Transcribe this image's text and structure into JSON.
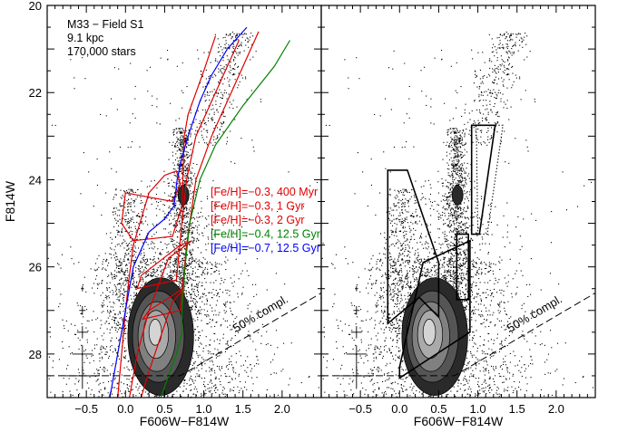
{
  "chart_data": [
    {
      "type": "scatter",
      "panel": "left",
      "xlabel": "F606W−F814W",
      "ylabel": "F814W",
      "xlim": [
        -1.0,
        2.5
      ],
      "ylim": [
        29.0,
        20.0
      ],
      "y_inverted": true,
      "xticks": [
        -0.5,
        0.0,
        0.5,
        1.0,
        1.5,
        2.0
      ],
      "xtick_labels": [
        "−0.5",
        "0.0",
        "0.5",
        "1.0",
        "1.5",
        "2.0"
      ],
      "yticks": [
        20,
        22,
        24,
        26,
        28
      ],
      "ytick_labels": [
        "20",
        "22",
        "24",
        "26",
        "28"
      ],
      "info_lines": [
        "M33 − Field S1",
        "9.1 kpc",
        "170,000 stars"
      ],
      "completeness": {
        "label": "50% compl.",
        "points": [
          [
            -1.0,
            28.5
          ],
          [
            0.7,
            28.5
          ],
          [
            2.5,
            26.6
          ]
        ],
        "label_at": [
          1.75,
          27.15
        ]
      },
      "error_bars": [
        {
          "x": -0.55,
          "y": 26.5,
          "ex": 0.02,
          "ey": 0.06
        },
        {
          "x": -0.55,
          "y": 27.0,
          "ex": 0.04,
          "ey": 0.1
        },
        {
          "x": -0.55,
          "y": 27.5,
          "ex": 0.07,
          "ey": 0.14
        },
        {
          "x": -0.55,
          "y": 28.0,
          "ex": 0.13,
          "ey": 0.2
        },
        {
          "x": -0.55,
          "y": 28.5,
          "ex": 0.22,
          "ey": 0.3
        }
      ],
      "density_contours": [
        {
          "level": 1,
          "cx": 0.45,
          "cy": 27.6,
          "rx": 0.42,
          "ry": 1.35
        },
        {
          "level": 2,
          "cx": 0.42,
          "cy": 27.6,
          "rx": 0.33,
          "ry": 1.05
        },
        {
          "level": 3,
          "cx": 0.4,
          "cy": 27.6,
          "rx": 0.24,
          "ry": 0.8
        },
        {
          "level": 4,
          "cx": 0.39,
          "cy": 27.55,
          "rx": 0.16,
          "ry": 0.55
        },
        {
          "level": 5,
          "cx": 0.38,
          "cy": 27.5,
          "rx": 0.08,
          "ry": 0.3
        },
        {
          "level": 1,
          "cx": 0.74,
          "cy": 24.35,
          "rx": 0.07,
          "ry": 0.22
        }
      ],
      "series": [
        {
          "name": "[Fe/H]=−0.3, 400 Myr",
          "color": "#e00000",
          "x": [
            -0.1,
            -0.05,
            0.0,
            0.05,
            0.1,
            0.3,
            0.5,
            0.65,
            0.7,
            0.6,
            0.3,
            0.0,
            -0.05,
            0.1,
            0.6,
            0.72,
            0.73,
            0.74,
            0.75,
            0.8,
            1.0,
            1.15
          ],
          "y": [
            29.0,
            28.0,
            27.0,
            26.2,
            25.5,
            24.3,
            23.9,
            23.8,
            24.1,
            24.5,
            24.4,
            24.3,
            25.0,
            25.4,
            25.3,
            24.6,
            24.2,
            23.5,
            23.0,
            22.5,
            21.5,
            20.7
          ]
        },
        {
          "name": "[Fe/H]=−0.3, 1 Gyr",
          "color": "#e00000",
          "x": [
            0.05,
            0.15,
            0.3,
            0.55,
            0.7,
            0.85,
            0.7,
            0.2,
            0.15,
            0.65,
            0.72,
            0.78,
            0.9,
            1.2,
            1.45
          ],
          "y": [
            29.0,
            28.0,
            27.0,
            25.8,
            25.6,
            25.4,
            25.5,
            26.2,
            26.5,
            26.3,
            25.0,
            24.0,
            23.0,
            21.8,
            20.8
          ]
        },
        {
          "name": "[Fe/H]=−0.3, 2 Gyr",
          "color": "#e00000",
          "x": [
            0.2,
            0.3,
            0.45,
            0.6,
            0.7,
            0.72,
            0.65,
            0.3,
            0.22,
            0.7,
            0.78,
            0.9,
            1.1,
            1.35,
            1.7
          ],
          "y": [
            29.0,
            28.4,
            27.6,
            26.8,
            26.6,
            26.5,
            26.6,
            27.0,
            27.2,
            27.0,
            25.5,
            24.0,
            23.0,
            22.0,
            20.6
          ]
        },
        {
          "name": "[Fe/H]=−0.4, 12.5 Gyr",
          "color": "#008000",
          "x": [
            0.45,
            0.55,
            0.65,
            0.72,
            0.72,
            0.76,
            0.82,
            0.95,
            1.15,
            1.5,
            1.9,
            2.1
          ],
          "y": [
            29.0,
            28.5,
            28.0,
            27.5,
            27.0,
            26.0,
            25.0,
            24.0,
            23.2,
            22.3,
            21.4,
            20.8
          ]
        },
        {
          "name": "[Fe/H]=−0.7, 12.5 Gyr",
          "color": "#0000ff",
          "x": [
            -0.2,
            -0.05,
            0.1,
            0.3,
            0.5,
            0.62,
            0.66,
            0.72,
            0.8,
            0.95,
            1.1,
            1.3,
            1.55
          ],
          "y": [
            29.0,
            27.5,
            26.0,
            25.2,
            24.9,
            24.6,
            24.0,
            23.5,
            23.0,
            22.2,
            21.6,
            21.0,
            20.5
          ]
        }
      ]
    },
    {
      "type": "scatter",
      "panel": "right",
      "xlabel": "F606W−F814W",
      "xlim": [
        -1.0,
        2.5
      ],
      "ylim": [
        29.0,
        20.0
      ],
      "y_inverted": true,
      "xticks": [
        -0.5,
        0.0,
        0.5,
        1.0,
        1.5,
        2.0
      ],
      "xtick_labels": [
        "−0.5",
        "0.0",
        "0.5",
        "1.0",
        "1.5",
        "2.0"
      ],
      "completeness": {
        "label": "50% compl.",
        "points": [
          [
            -1.0,
            28.5
          ],
          [
            0.7,
            28.5
          ],
          [
            2.5,
            26.6
          ]
        ],
        "label_at": [
          1.75,
          27.15
        ]
      },
      "error_bars": [
        {
          "x": -0.55,
          "y": 26.5,
          "ex": 0.02,
          "ey": 0.06
        },
        {
          "x": -0.55,
          "y": 27.0,
          "ex": 0.04,
          "ey": 0.1
        },
        {
          "x": -0.55,
          "y": 27.5,
          "ex": 0.07,
          "ey": 0.14
        },
        {
          "x": -0.55,
          "y": 28.0,
          "ex": 0.13,
          "ey": 0.2
        },
        {
          "x": -0.55,
          "y": 28.5,
          "ex": 0.22,
          "ey": 0.3
        }
      ],
      "density_contours": [
        {
          "level": 1,
          "cx": 0.45,
          "cy": 27.6,
          "rx": 0.42,
          "ry": 1.35
        },
        {
          "level": 2,
          "cx": 0.42,
          "cy": 27.6,
          "rx": 0.33,
          "ry": 1.05
        },
        {
          "level": 3,
          "cx": 0.4,
          "cy": 27.6,
          "rx": 0.24,
          "ry": 0.8
        },
        {
          "level": 4,
          "cx": 0.39,
          "cy": 27.55,
          "rx": 0.16,
          "ry": 0.55
        },
        {
          "level": 5,
          "cx": 0.38,
          "cy": 27.5,
          "rx": 0.08,
          "ry": 0.3
        },
        {
          "level": 1,
          "cx": 0.74,
          "cy": 24.35,
          "rx": 0.07,
          "ry": 0.22
        }
      ],
      "selection_boxes": [
        {
          "style": "solid",
          "points": [
            [
              -0.15,
              23.78
            ],
            [
              0.1,
              23.78
            ],
            [
              0.5,
              25.9
            ],
            [
              0.5,
              27.15
            ],
            [
              0.25,
              26.7
            ],
            [
              -0.15,
              27.3
            ]
          ]
        },
        {
          "style": "solid",
          "points": [
            [
              0.3,
              25.9
            ],
            [
              0.9,
              25.4
            ],
            [
              0.9,
              27.5
            ],
            [
              0.0,
              28.55
            ],
            [
              0.0,
              28.3
            ]
          ]
        },
        {
          "style": "solid",
          "points": [
            [
              0.73,
              25.25
            ],
            [
              0.88,
              25.25
            ],
            [
              0.88,
              26.75
            ],
            [
              0.73,
              26.75
            ]
          ]
        },
        {
          "style": "solid",
          "points": [
            [
              0.92,
              22.75
            ],
            [
              1.22,
              22.75
            ],
            [
              1.02,
              25.25
            ],
            [
              0.92,
              25.25
            ]
          ]
        },
        {
          "style": "dotted",
          "points": [
            [
              0.98,
              22.75
            ],
            [
              1.32,
              22.75
            ],
            [
              1.12,
              25.25
            ],
            [
              1.0,
              25.25
            ]
          ]
        }
      ]
    }
  ]
}
